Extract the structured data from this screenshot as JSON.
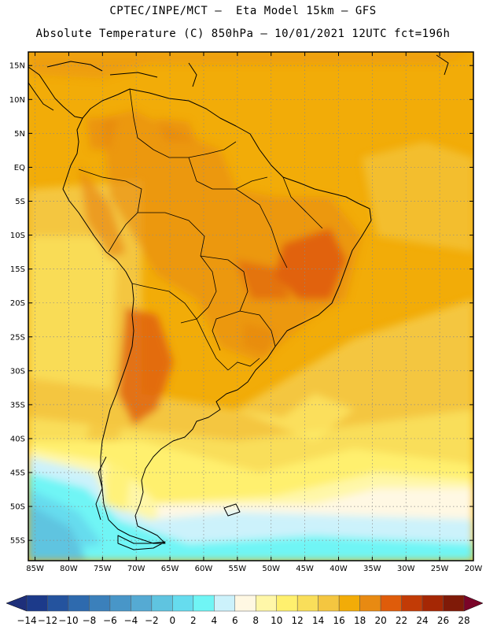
{
  "header": {
    "line1": "CPTEC/INPE/MCT –  Eta Model 15km – GFS",
    "line2": "Absolute Temperature (C) 850hPa – 10/01/2021 12UTC fct=196h"
  },
  "map": {
    "lon_range": [
      -86,
      -20
    ],
    "lat_range": [
      -58,
      17
    ],
    "lon_ticks": [
      {
        "v": -85,
        "label": "85W"
      },
      {
        "v": -80,
        "label": "80W"
      },
      {
        "v": -75,
        "label": "75W"
      },
      {
        "v": -70,
        "label": "70W"
      },
      {
        "v": -65,
        "label": "65W"
      },
      {
        "v": -60,
        "label": "60W"
      },
      {
        "v": -55,
        "label": "55W"
      },
      {
        "v": -50,
        "label": "50W"
      },
      {
        "v": -45,
        "label": "45W"
      },
      {
        "v": -40,
        "label": "40W"
      },
      {
        "v": -35,
        "label": "35W"
      },
      {
        "v": -30,
        "label": "30W"
      },
      {
        "v": -25,
        "label": "25W"
      },
      {
        "v": -20,
        "label": "20W"
      }
    ],
    "lat_ticks": [
      {
        "v": 15,
        "label": "15N"
      },
      {
        "v": 10,
        "label": "10N"
      },
      {
        "v": 5,
        "label": "5N"
      },
      {
        "v": 0,
        "label": "EQ"
      },
      {
        "v": -5,
        "label": "5S"
      },
      {
        "v": -10,
        "label": "10S"
      },
      {
        "v": -15,
        "label": "15S"
      },
      {
        "v": -20,
        "label": "20S"
      },
      {
        "v": -25,
        "label": "25S"
      },
      {
        "v": -30,
        "label": "30S"
      },
      {
        "v": -35,
        "label": "35S"
      },
      {
        "v": -40,
        "label": "40S"
      },
      {
        "v": -45,
        "label": "45S"
      },
      {
        "v": -50,
        "label": "50S"
      },
      {
        "v": -55,
        "label": "55S"
      }
    ]
  },
  "colorbar": {
    "labels": [
      "-14",
      "-12",
      "-10",
      "-8",
      "-6",
      "-4",
      "-2",
      "0",
      "2",
      "4",
      "6",
      "8",
      "10",
      "12",
      "14",
      "16",
      "18",
      "20",
      "22",
      "24",
      "26",
      "28"
    ],
    "colors": [
      "#1c3a8a",
      "#24539e",
      "#2e6aae",
      "#3b80bb",
      "#4896c8",
      "#55aad3",
      "#5fc4e0",
      "#66dcee",
      "#70f5f5",
      "#ccf2fb",
      "#fff8e3",
      "#fff7a8",
      "#fff06e",
      "#f9de5a",
      "#f4c640",
      "#f2ac08",
      "#e88a12",
      "#df5c0a",
      "#c23b06",
      "#a52704",
      "#7f1a08"
    ],
    "low_arrow_color": "#1e2f7a",
    "high_arrow_color": "#7a0428"
  }
}
